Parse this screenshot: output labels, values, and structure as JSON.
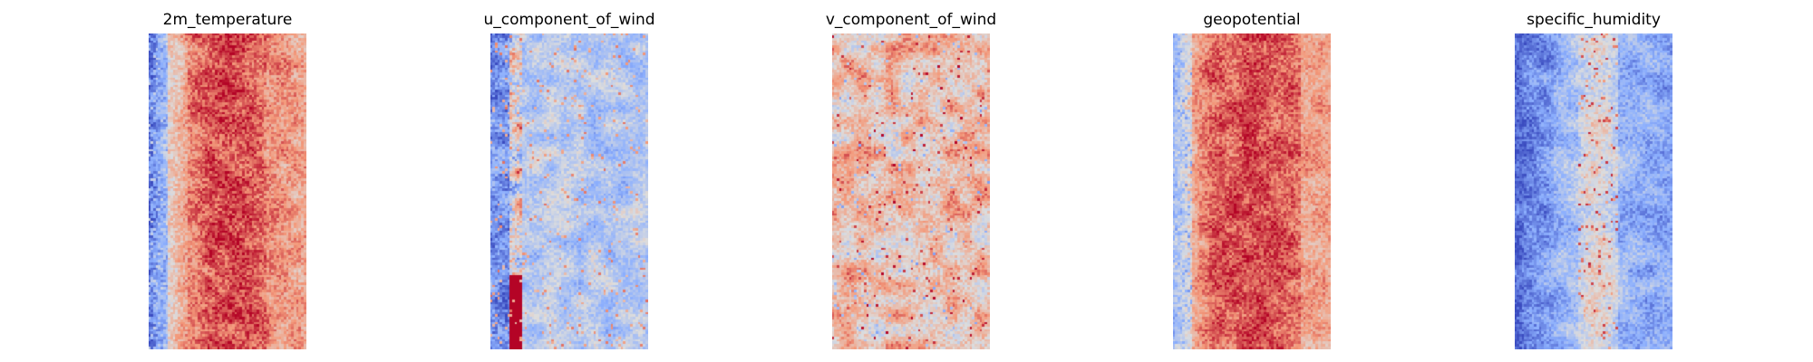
{
  "chart_data": [
    {
      "type": "heatmap",
      "title": "2m_temperature",
      "colormap": "coolwarm",
      "axes": "off",
      "grid": false,
      "legend": "none",
      "profile": "temperature"
    },
    {
      "type": "heatmap",
      "title": "u_component_of_wind",
      "colormap": "coolwarm",
      "axes": "off",
      "grid": false,
      "legend": "none",
      "profile": "u_wind"
    },
    {
      "type": "heatmap",
      "title": "v_component_of_wind",
      "colormap": "coolwarm",
      "axes": "off",
      "grid": false,
      "legend": "none",
      "profile": "v_wind"
    },
    {
      "type": "heatmap",
      "title": "geopotential",
      "colormap": "coolwarm",
      "axes": "off",
      "grid": false,
      "legend": "none",
      "profile": "geopotential"
    },
    {
      "type": "heatmap",
      "title": "specific_humidity",
      "colormap": "coolwarm",
      "axes": "off",
      "grid": false,
      "legend": "none",
      "profile": "humidity"
    }
  ],
  "colors": {
    "cold": "#3b4cc0",
    "neutral": "#dddddd",
    "warm": "#b40426",
    "background": "#ffffff"
  }
}
